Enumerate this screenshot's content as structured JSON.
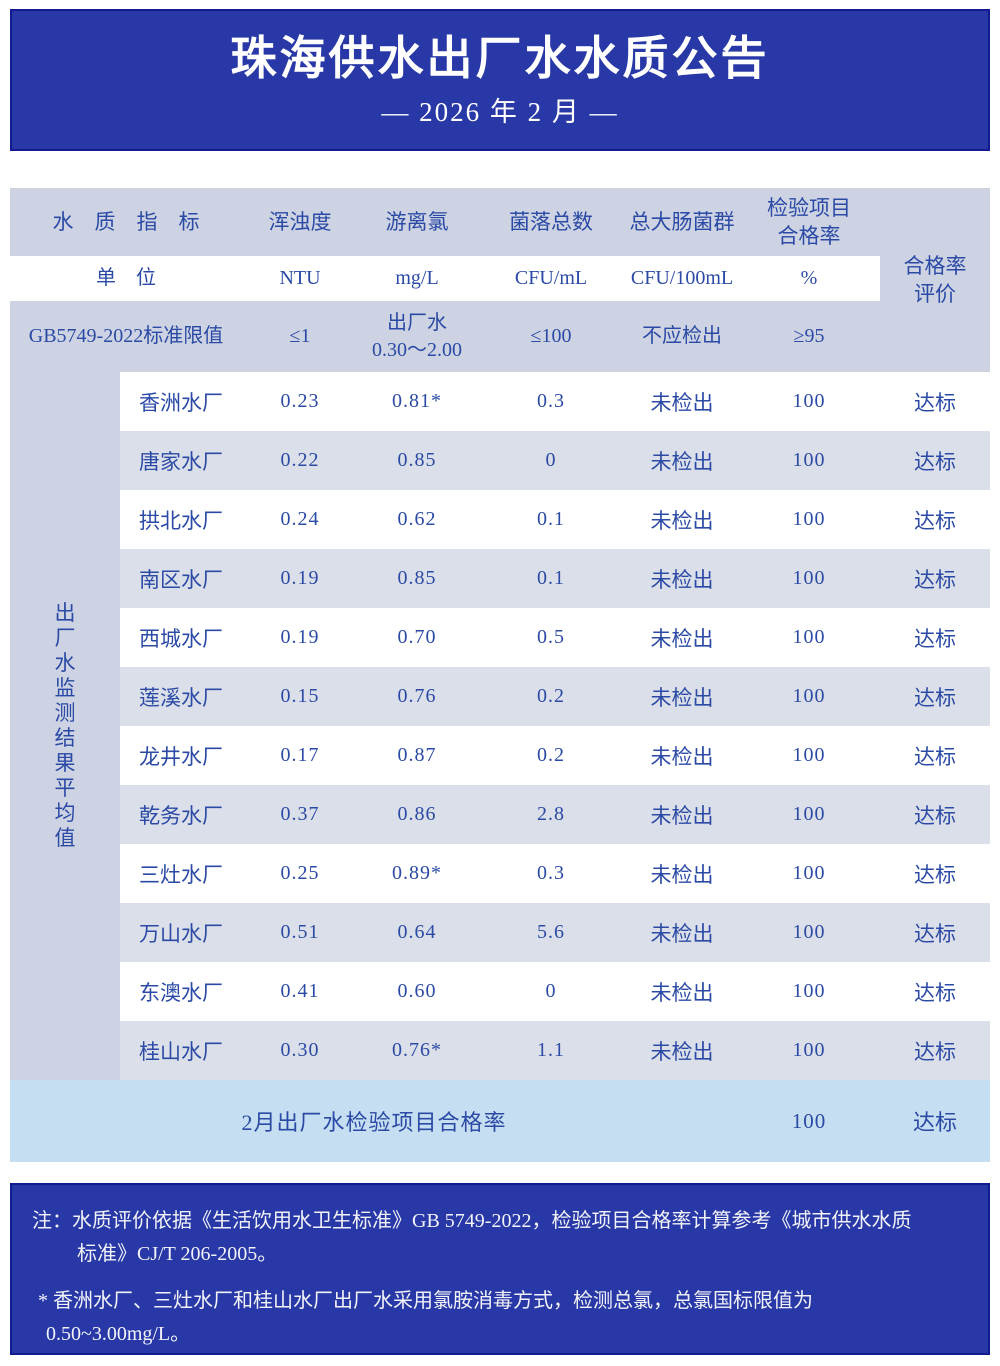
{
  "header": {
    "title": "珠海供水出厂水水质公告",
    "subtitle": "— 2026 年 2 月 —"
  },
  "table": {
    "indicator_header": "水　质　指　标",
    "columns": {
      "turbidity": "浑浊度",
      "chlorine": "游离氯",
      "bacteria": "菌落总数",
      "coliform": "总大肠菌群",
      "pass_rate": "检验项目\n合格率",
      "evaluation": "合格率\n评价"
    },
    "unit_row": {
      "label": "单　位",
      "turbidity": "NTU",
      "chlorine": "mg/L",
      "bacteria": "CFU/mL",
      "coliform": "CFU/100mL",
      "pass_rate": "%"
    },
    "limit_row": {
      "label": "GB5749-2022标准限值",
      "turbidity": "≤1",
      "chlorine": "出厂水\n0.30～2.00",
      "bacteria": "≤100",
      "coliform": "不应检出",
      "pass_rate": "≥95"
    },
    "row_group_label": "出\n厂\n水\n监\n测\n结\n果\n平\n均\n值",
    "rows": [
      {
        "name": "香洲水厂",
        "turbidity": "0.23",
        "chlorine": "0.81*",
        "bacteria": "0.3",
        "coliform": "未检出",
        "pass_rate": "100",
        "evaluation": "达标"
      },
      {
        "name": "唐家水厂",
        "turbidity": "0.22",
        "chlorine": "0.85",
        "bacteria": "0",
        "coliform": "未检出",
        "pass_rate": "100",
        "evaluation": "达标"
      },
      {
        "name": "拱北水厂",
        "turbidity": "0.24",
        "chlorine": "0.62",
        "bacteria": "0.1",
        "coliform": "未检出",
        "pass_rate": "100",
        "evaluation": "达标"
      },
      {
        "name": "南区水厂",
        "turbidity": "0.19",
        "chlorine": "0.85",
        "bacteria": "0.1",
        "coliform": "未检出",
        "pass_rate": "100",
        "evaluation": "达标"
      },
      {
        "name": "西城水厂",
        "turbidity": "0.19",
        "chlorine": "0.70",
        "bacteria": "0.5",
        "coliform": "未检出",
        "pass_rate": "100",
        "evaluation": "达标"
      },
      {
        "name": "莲溪水厂",
        "turbidity": "0.15",
        "chlorine": "0.76",
        "bacteria": "0.2",
        "coliform": "未检出",
        "pass_rate": "100",
        "evaluation": "达标"
      },
      {
        "name": "龙井水厂",
        "turbidity": "0.17",
        "chlorine": "0.87",
        "bacteria": "0.2",
        "coliform": "未检出",
        "pass_rate": "100",
        "evaluation": "达标"
      },
      {
        "name": "乾务水厂",
        "turbidity": "0.37",
        "chlorine": "0.86",
        "bacteria": "2.8",
        "coliform": "未检出",
        "pass_rate": "100",
        "evaluation": "达标"
      },
      {
        "name": "三灶水厂",
        "turbidity": "0.25",
        "chlorine": "0.89*",
        "bacteria": "0.3",
        "coliform": "未检出",
        "pass_rate": "100",
        "evaluation": "达标"
      },
      {
        "name": "万山水厂",
        "turbidity": "0.51",
        "chlorine": "0.64",
        "bacteria": "5.6",
        "coliform": "未检出",
        "pass_rate": "100",
        "evaluation": "达标"
      },
      {
        "name": "东澳水厂",
        "turbidity": "0.41",
        "chlorine": "0.60",
        "bacteria": "0",
        "coliform": "未检出",
        "pass_rate": "100",
        "evaluation": "达标"
      },
      {
        "name": "桂山水厂",
        "turbidity": "0.30",
        "chlorine": "0.76*",
        "bacteria": "1.1",
        "coliform": "未检出",
        "pass_rate": "100",
        "evaluation": "达标"
      }
    ],
    "summary": {
      "label": "2月出厂水检验项目合格率",
      "pass_rate": "100",
      "evaluation": "达标"
    }
  },
  "notes": {
    "note1": "注：水质评价依据《生活饮用水卫生标准》GB 5749-2022，检验项目合格率计算参考《城市供水水质\n标准》CJ/T 206-2005。",
    "note2": "* 香洲水厂、三灶水厂和桂山水厂出厂水采用氯胺消毒方式，检测总氯，总氯国标限值为\n0.50~3.00mg/L。"
  },
  "colors": {
    "accent": "#2838a6",
    "box-border": "#131b90",
    "bg-head": "#cdd3e3",
    "bg-alt": "#dbdfe9",
    "bg-summary": "#c5def1",
    "text": "#2b4aa5",
    "light-text": "#f2f3f8"
  }
}
